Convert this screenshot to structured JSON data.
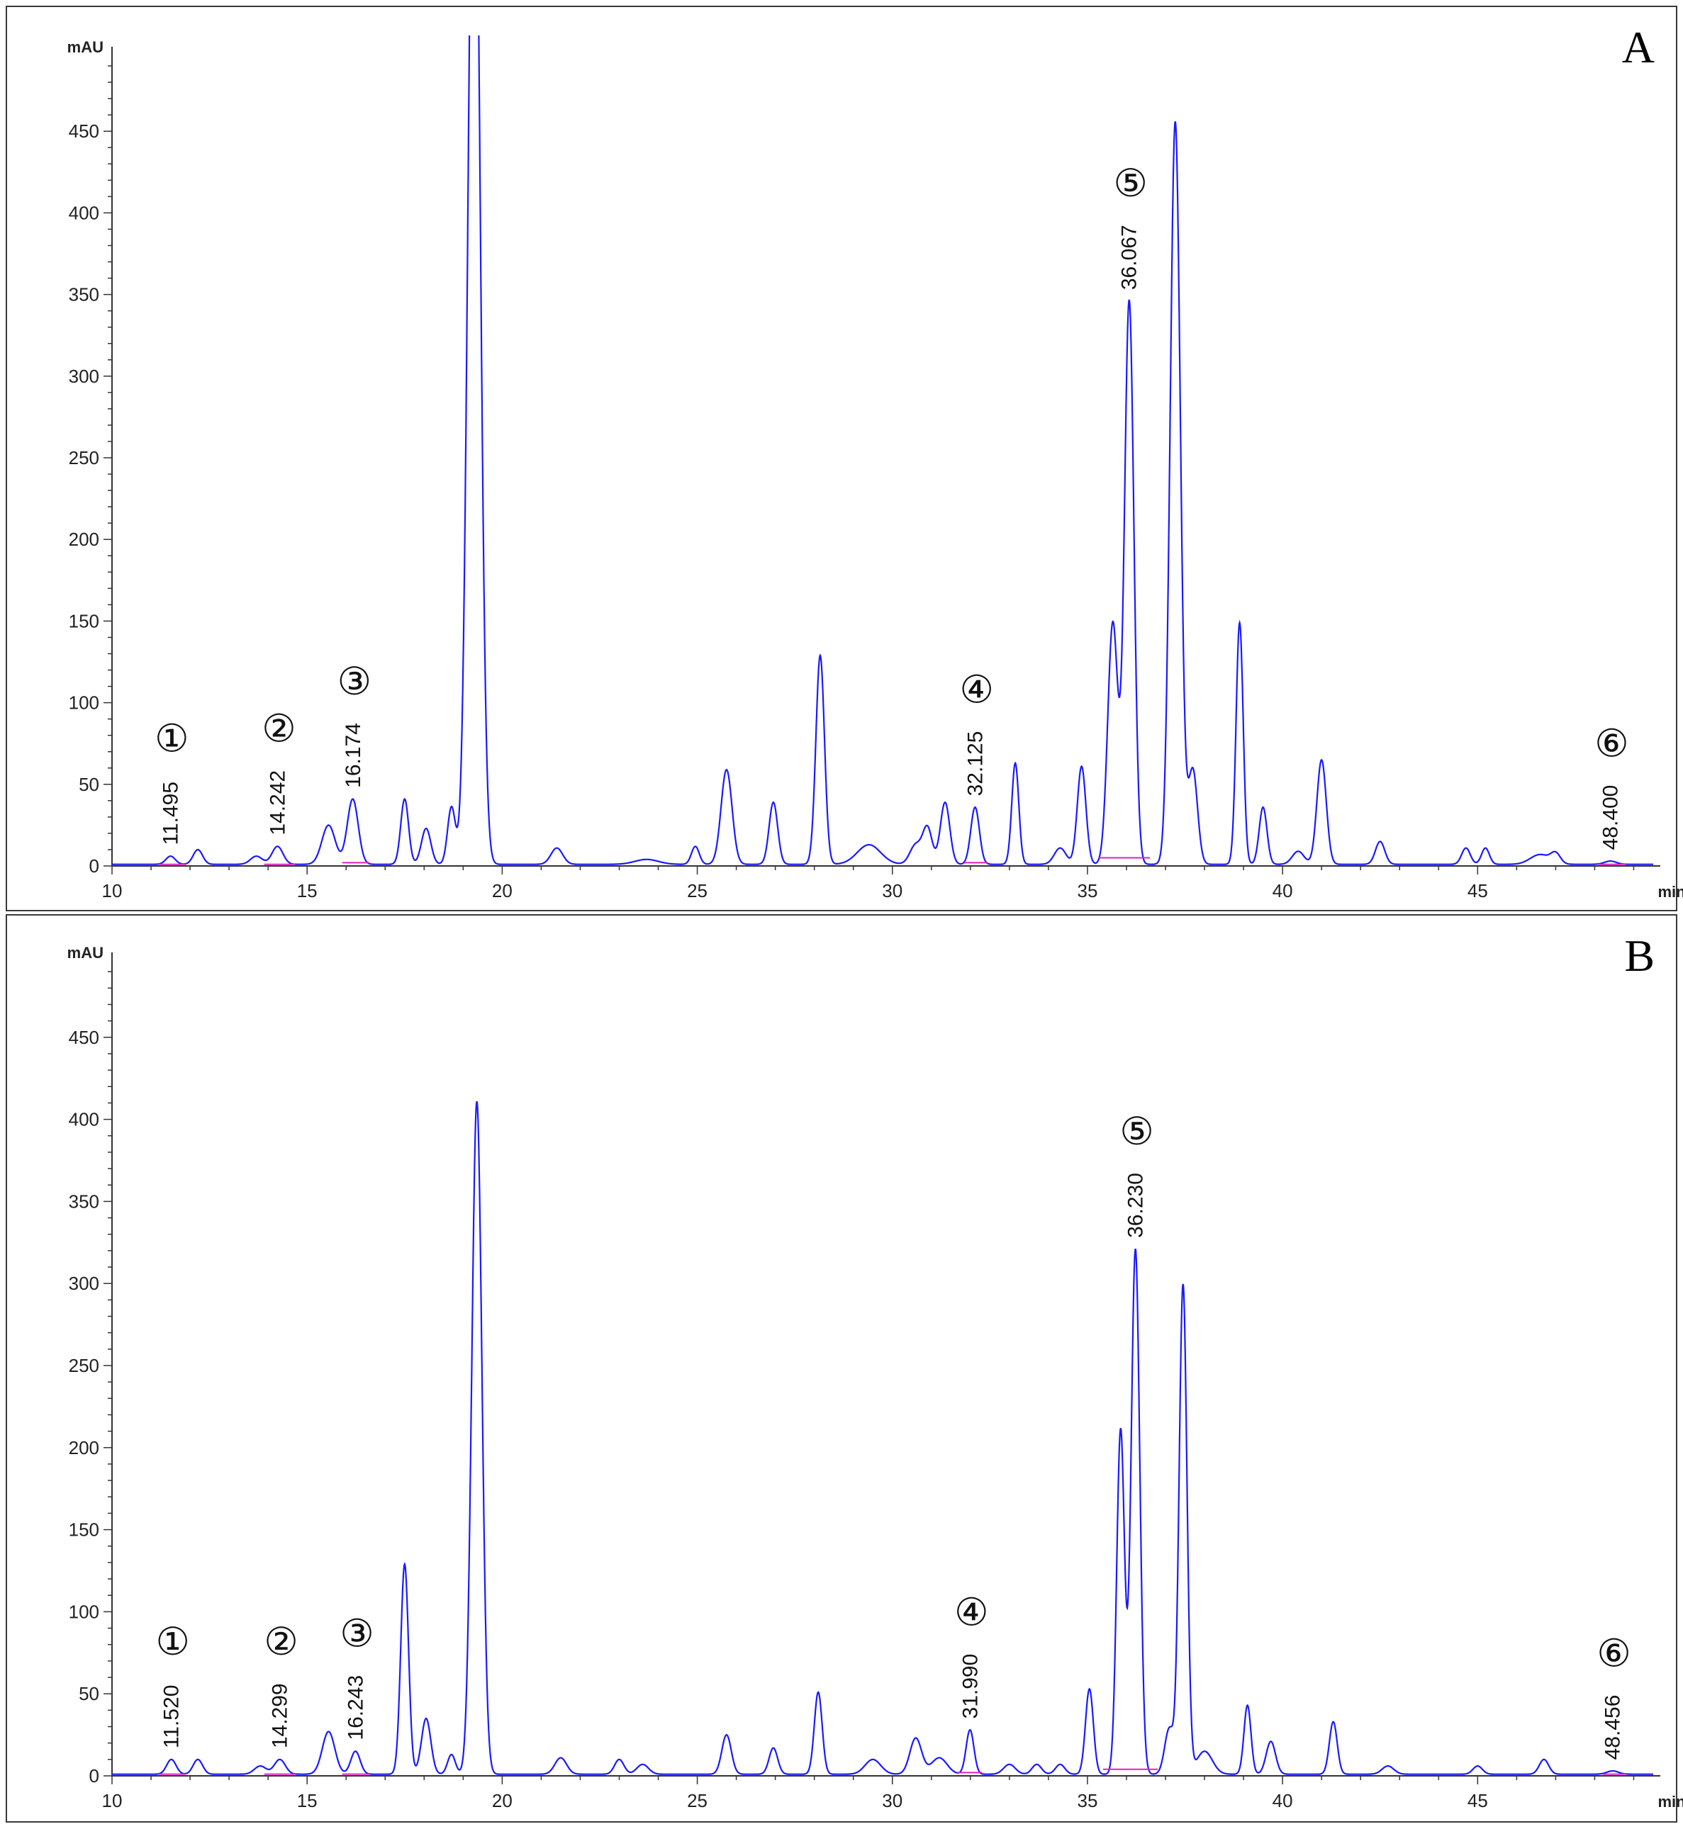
{
  "colors": {
    "trace": "#1a1aff",
    "baseline": "#e020c0",
    "axis": "#333333"
  },
  "chart_data": [
    {
      "type": "line",
      "panel": "A",
      "xlabel": "min",
      "ylabel": "mAU",
      "xlim": [
        10,
        49.5
      ],
      "ylim": [
        0,
        500
      ],
      "x_ticks": [
        10,
        15,
        20,
        25,
        30,
        35,
        40,
        45
      ],
      "y_ticks": [
        0,
        50,
        100,
        150,
        200,
        250,
        300,
        350,
        400,
        450
      ],
      "baseline": 1,
      "peaks": [
        [
          11.5,
          5,
          0.12
        ],
        [
          12.2,
          9,
          0.12
        ],
        [
          13.7,
          5,
          0.15
        ],
        [
          14.24,
          11,
          0.14
        ],
        [
          15.55,
          24,
          0.17
        ],
        [
          16.17,
          40,
          0.14
        ],
        [
          17.5,
          40,
          0.1
        ],
        [
          18.05,
          22,
          0.12
        ],
        [
          18.7,
          35,
          0.1
        ],
        [
          19.28,
          700,
          0.15
        ],
        [
          21.4,
          10,
          0.15
        ],
        [
          23.7,
          3,
          0.3
        ],
        [
          24.95,
          11,
          0.1
        ],
        [
          25.75,
          58,
          0.14
        ],
        [
          26.95,
          38,
          0.11
        ],
        [
          28.15,
          128,
          0.11
        ],
        [
          29.4,
          12,
          0.3
        ],
        [
          30.6,
          12,
          0.15
        ],
        [
          30.9,
          22,
          0.12
        ],
        [
          31.35,
          38,
          0.12
        ],
        [
          32.12,
          35,
          0.11
        ],
        [
          33.15,
          62,
          0.09
        ],
        [
          34.3,
          10,
          0.15
        ],
        [
          34.85,
          60,
          0.11
        ],
        [
          35.65,
          148,
          0.13
        ],
        [
          36.07,
          345,
          0.12
        ],
        [
          37.25,
          455,
          0.13
        ],
        [
          37.7,
          58,
          0.12
        ],
        [
          38.9,
          148,
          0.09
        ],
        [
          39.5,
          35,
          0.1
        ],
        [
          40.4,
          8,
          0.15
        ],
        [
          41.0,
          64,
          0.12
        ],
        [
          42.5,
          14,
          0.12
        ],
        [
          44.7,
          10,
          0.11
        ],
        [
          45.2,
          10,
          0.1
        ],
        [
          46.6,
          6,
          0.25
        ],
        [
          47.0,
          6,
          0.12
        ],
        [
          48.4,
          2,
          0.15
        ]
      ],
      "peak_labels": [
        {
          "number": "①",
          "retention": "11.495",
          "x": 11.495,
          "y": 5
        },
        {
          "number": "②",
          "retention": "14.242",
          "x": 14.242,
          "y": 11
        },
        {
          "number": "③",
          "retention": "16.174",
          "x": 16.174,
          "y": 40
        },
        {
          "number": "④",
          "retention": "32.125",
          "x": 32.125,
          "y": 35
        },
        {
          "number": "⑤",
          "retention": "36.067",
          "x": 36.067,
          "y": 345
        },
        {
          "number": "⑥",
          "retention": "48.400",
          "x": 48.4,
          "y": 2
        }
      ],
      "integration_baselines": [
        [
          11.2,
          11.9,
          1
        ],
        [
          13.9,
          14.7,
          1
        ],
        [
          15.9,
          16.6,
          2
        ],
        [
          31.85,
          32.45,
          2
        ],
        [
          35.3,
          36.6,
          5
        ],
        [
          48.1,
          48.8,
          1
        ]
      ]
    },
    {
      "type": "line",
      "panel": "B",
      "xlabel": "min",
      "ylabel": "mAU",
      "xlim": [
        10,
        49.5
      ],
      "ylim": [
        0,
        500
      ],
      "x_ticks": [
        10,
        15,
        20,
        25,
        30,
        35,
        40,
        45
      ],
      "y_ticks": [
        0,
        50,
        100,
        150,
        200,
        250,
        300,
        350,
        400,
        450
      ],
      "baseline": 1,
      "peaks": [
        [
          11.52,
          9,
          0.12
        ],
        [
          12.2,
          9,
          0.12
        ],
        [
          13.8,
          5,
          0.15
        ],
        [
          14.3,
          9,
          0.14
        ],
        [
          15.55,
          26,
          0.16
        ],
        [
          16.24,
          14,
          0.12
        ],
        [
          17.5,
          128,
          0.1
        ],
        [
          18.05,
          34,
          0.12
        ],
        [
          18.7,
          12,
          0.1
        ],
        [
          19.35,
          410,
          0.13
        ],
        [
          21.5,
          10,
          0.15
        ],
        [
          23.0,
          9,
          0.12
        ],
        [
          23.6,
          6,
          0.15
        ],
        [
          25.75,
          24,
          0.12
        ],
        [
          26.95,
          16,
          0.11
        ],
        [
          28.1,
          50,
          0.1
        ],
        [
          29.5,
          9,
          0.2
        ],
        [
          30.6,
          22,
          0.15
        ],
        [
          31.2,
          10,
          0.2
        ],
        [
          31.99,
          27,
          0.1
        ],
        [
          33.0,
          6,
          0.15
        ],
        [
          33.7,
          6,
          0.12
        ],
        [
          34.3,
          6,
          0.12
        ],
        [
          35.05,
          52,
          0.1
        ],
        [
          35.85,
          210,
          0.1
        ],
        [
          36.23,
          320,
          0.11
        ],
        [
          37.1,
          28,
          0.12
        ],
        [
          37.45,
          298,
          0.1
        ],
        [
          38.0,
          14,
          0.2
        ],
        [
          39.1,
          42,
          0.09
        ],
        [
          39.7,
          20,
          0.12
        ],
        [
          41.3,
          32,
          0.1
        ],
        [
          42.7,
          5,
          0.15
        ],
        [
          45.0,
          5,
          0.12
        ],
        [
          46.7,
          9,
          0.12
        ],
        [
          48.46,
          2,
          0.15
        ]
      ],
      "peak_labels": [
        {
          "number": "①",
          "retention": "11.520",
          "x": 11.52,
          "y": 9
        },
        {
          "number": "②",
          "retention": "14.299",
          "x": 14.299,
          "y": 9
        },
        {
          "number": "③",
          "retention": "16.243",
          "x": 16.243,
          "y": 14
        },
        {
          "number": "④",
          "retention": "31.990",
          "x": 31.99,
          "y": 27
        },
        {
          "number": "⑤",
          "retention": "36.230",
          "x": 36.23,
          "y": 320
        },
        {
          "number": "⑥",
          "retention": "48.456",
          "x": 48.456,
          "y": 2
        }
      ],
      "integration_baselines": [
        [
          11.2,
          11.9,
          1
        ],
        [
          13.9,
          14.7,
          1
        ],
        [
          15.9,
          16.6,
          1
        ],
        [
          31.65,
          32.3,
          2
        ],
        [
          35.4,
          36.8,
          4
        ],
        [
          48.2,
          48.8,
          1
        ]
      ]
    }
  ],
  "panels": [
    {
      "label": "A"
    },
    {
      "label": "B"
    }
  ]
}
